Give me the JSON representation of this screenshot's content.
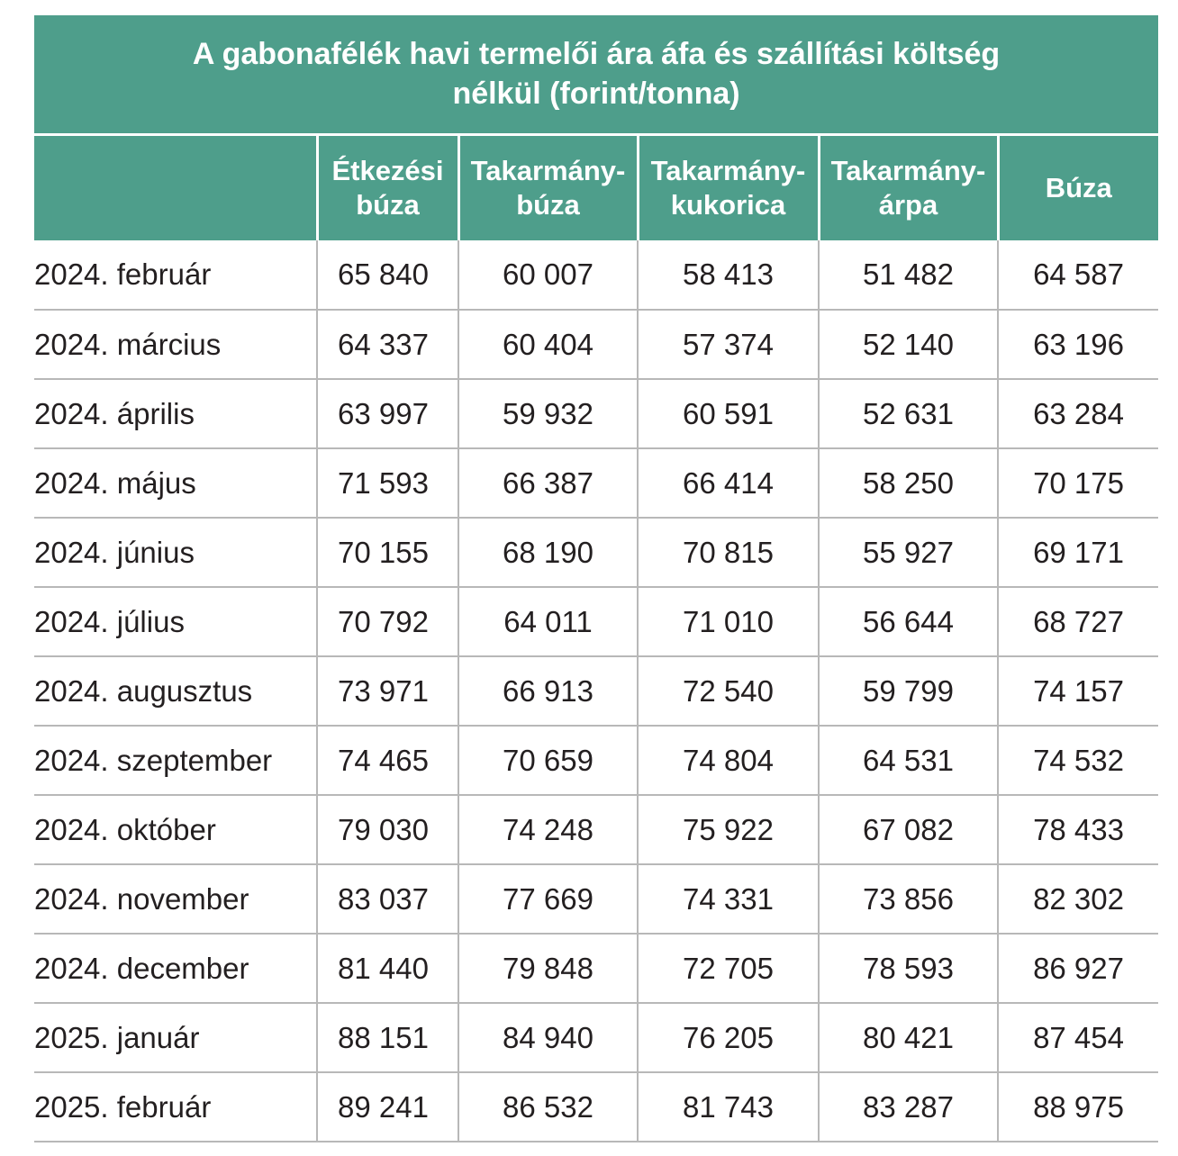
{
  "table": {
    "title_line1": "A gabonafélék havi termelői ára áfa és szállítási költség",
    "title_line2": "nélkül (forint/tonna)",
    "headers": [
      {
        "line1": "",
        "line2": ""
      },
      {
        "line1": "Étkezési",
        "line2": "búza"
      },
      {
        "line1": "Takarmány-",
        "line2": "búza"
      },
      {
        "line1": "Takarmány-",
        "line2": "kukorica"
      },
      {
        "line1": "Takarmány-",
        "line2": "árpa"
      },
      {
        "line1": "Búza",
        "line2": ""
      }
    ],
    "rows": [
      [
        "2024. február",
        "65 840",
        "60 007",
        "58 413",
        "51 482",
        "64 587"
      ],
      [
        "2024. március",
        "64 337",
        "60 404",
        "57 374",
        "52 140",
        "63 196"
      ],
      [
        "2024. április",
        "63 997",
        "59 932",
        "60 591",
        "52 631",
        "63 284"
      ],
      [
        "2024. május",
        "71 593",
        "66 387",
        "66 414",
        "58 250",
        "70 175"
      ],
      [
        "2024. június",
        "70 155",
        "68 190",
        "70 815",
        "55 927",
        "69 171"
      ],
      [
        "2024. július",
        "70 792",
        "64 011",
        "71 010",
        "56 644",
        "68 727"
      ],
      [
        "2024. augusztus",
        "73 971",
        "66 913",
        "72 540",
        "59 799",
        "74 157"
      ],
      [
        "2024. szeptember",
        "74 465",
        "70 659",
        "74 804",
        "64 531",
        "74 532"
      ],
      [
        "2024. október",
        "79 030",
        "74 248",
        "75 922",
        "67 082",
        "78 433"
      ],
      [
        "2024. november",
        "83 037",
        "77 669",
        "74 331",
        "73 856",
        "82 302"
      ],
      [
        "2024. december",
        "81 440",
        "79 848",
        "72 705",
        "78 593",
        "86 927"
      ],
      [
        "2025. január",
        "88 151",
        "84 940",
        "76 205",
        "80 421",
        "87 454"
      ],
      [
        "2025. február",
        "89 241",
        "86 532",
        "81 743",
        "83 287",
        "88 975"
      ]
    ]
  },
  "colors": {
    "header_bg": "#4e9e8b",
    "header_text": "#ffffff",
    "grid_line": "#b8b8b8",
    "body_text": "#231f20"
  }
}
